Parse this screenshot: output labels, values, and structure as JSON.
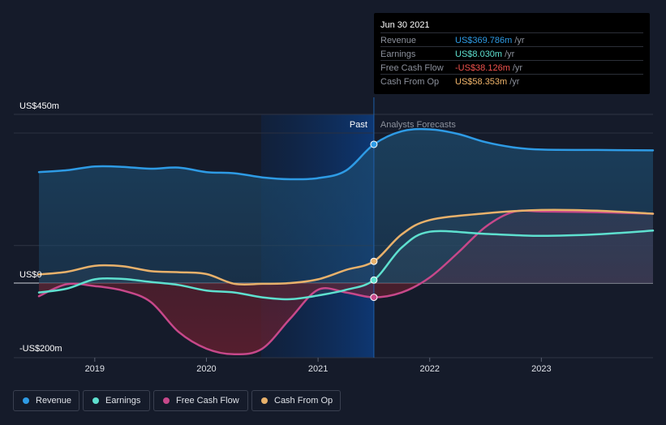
{
  "tooltip": {
    "date": "Jun 30 2021",
    "rows": [
      {
        "label": "Revenue",
        "value": "US$369.786m",
        "unit": "/yr",
        "color": "#2e9be5"
      },
      {
        "label": "Earnings",
        "value": "US$8.030m",
        "unit": "/yr",
        "color": "#5ee0cf"
      },
      {
        "label": "Free Cash Flow",
        "value": "-US$38.126m",
        "unit": "/yr",
        "color": "#f0524d"
      },
      {
        "label": "Cash From Op",
        "value": "US$58.353m",
        "unit": "/yr",
        "color": "#f1b56b"
      }
    ]
  },
  "legend": [
    {
      "label": "Revenue",
      "color": "#2e9be5"
    },
    {
      "label": "Earnings",
      "color": "#5ee0cf"
    },
    {
      "label": "Free Cash Flow",
      "color": "#c7488a"
    },
    {
      "label": "Cash From Op",
      "color": "#e8b16b"
    }
  ],
  "chart_data": {
    "type": "line",
    "y_tick_labels": [
      "US$450m",
      "US$0",
      "-US$200m"
    ],
    "ylim": [
      -200,
      450
    ],
    "x_tick_labels": [
      "2019",
      "2020",
      "2021",
      "2022",
      "2023"
    ],
    "xlim": [
      2018.5,
      2024.0
    ],
    "divider_x": 2021.5,
    "past_label": "Past",
    "forecast_label": "Analysts Forecasts",
    "grid": true,
    "legend_position": "bottom-left",
    "series": [
      {
        "name": "Revenue",
        "color": "#2e9be5",
        "points": [
          [
            2018.5,
            296
          ],
          [
            2018.75,
            301
          ],
          [
            2019.0,
            311
          ],
          [
            2019.25,
            310
          ],
          [
            2019.5,
            305
          ],
          [
            2019.75,
            308
          ],
          [
            2020.0,
            296
          ],
          [
            2020.25,
            293
          ],
          [
            2020.5,
            282
          ],
          [
            2020.75,
            277
          ],
          [
            2021.0,
            280
          ],
          [
            2021.25,
            300
          ],
          [
            2021.5,
            370
          ],
          [
            2021.75,
            405
          ],
          [
            2022.0,
            410
          ],
          [
            2022.25,
            398
          ],
          [
            2022.5,
            376
          ],
          [
            2022.75,
            362
          ],
          [
            2023.0,
            356
          ],
          [
            2023.5,
            355
          ],
          [
            2024.0,
            354
          ]
        ]
      },
      {
        "name": "Earnings",
        "color": "#5ee0cf",
        "points": [
          [
            2018.5,
            -25
          ],
          [
            2018.75,
            -15
          ],
          [
            2019.0,
            10
          ],
          [
            2019.25,
            11
          ],
          [
            2019.5,
            3
          ],
          [
            2019.75,
            -5
          ],
          [
            2020.0,
            -20
          ],
          [
            2020.25,
            -25
          ],
          [
            2020.5,
            -38
          ],
          [
            2020.75,
            -43
          ],
          [
            2021.0,
            -33
          ],
          [
            2021.25,
            -18
          ],
          [
            2021.5,
            8
          ],
          [
            2021.75,
            95
          ],
          [
            2022.0,
            137
          ],
          [
            2022.5,
            131
          ],
          [
            2023.0,
            126
          ],
          [
            2023.5,
            130
          ],
          [
            2024.0,
            140
          ]
        ]
      },
      {
        "name": "Free Cash Flow",
        "color": "#c7488a",
        "points": [
          [
            2018.5,
            -35
          ],
          [
            2018.75,
            -3
          ],
          [
            2019.0,
            -8
          ],
          [
            2019.25,
            -20
          ],
          [
            2019.5,
            -50
          ],
          [
            2019.75,
            -130
          ],
          [
            2020.0,
            -175
          ],
          [
            2020.25,
            -190
          ],
          [
            2020.5,
            -175
          ],
          [
            2020.75,
            -95
          ],
          [
            2021.0,
            -18
          ],
          [
            2021.25,
            -25
          ],
          [
            2021.5,
            -38
          ],
          [
            2021.75,
            -25
          ],
          [
            2022.0,
            15
          ],
          [
            2022.25,
            80
          ],
          [
            2022.5,
            150
          ],
          [
            2022.75,
            190
          ],
          [
            2023.0,
            191
          ],
          [
            2023.5,
            189
          ],
          [
            2024.0,
            185
          ]
        ]
      },
      {
        "name": "Cash From Op",
        "color": "#e8b16b",
        "points": [
          [
            2018.5,
            23
          ],
          [
            2018.75,
            30
          ],
          [
            2019.0,
            46
          ],
          [
            2019.25,
            45
          ],
          [
            2019.5,
            32
          ],
          [
            2019.75,
            29
          ],
          [
            2020.0,
            24
          ],
          [
            2020.25,
            -2
          ],
          [
            2020.5,
            -2
          ],
          [
            2020.75,
            0
          ],
          [
            2021.0,
            10
          ],
          [
            2021.25,
            35
          ],
          [
            2021.5,
            58
          ],
          [
            2021.75,
            130
          ],
          [
            2022.0,
            168
          ],
          [
            2022.5,
            186
          ],
          [
            2023.0,
            195
          ],
          [
            2023.5,
            193
          ],
          [
            2024.0,
            185
          ]
        ]
      }
    ],
    "highlight_x": 2021.5
  }
}
